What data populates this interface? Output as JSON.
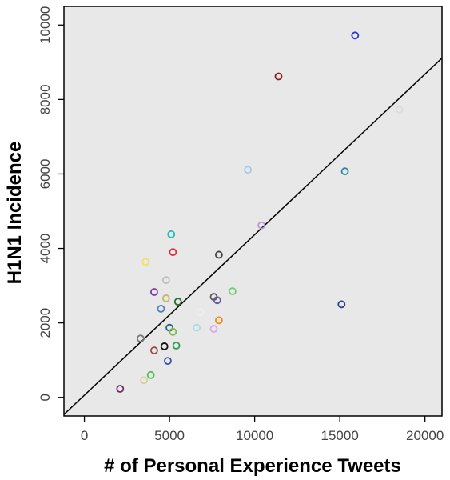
{
  "chart_data": {
    "type": "scatter",
    "xlabel": "# of Personal Experience Tweets",
    "ylabel": "H1N1 Incidence",
    "xlim": [
      -1200,
      21000
    ],
    "ylim": [
      -500,
      10500
    ],
    "xticks": [
      0,
      5000,
      10000,
      15000,
      20000
    ],
    "yticks": [
      0,
      2000,
      4000,
      6000,
      8000,
      10000
    ],
    "x_tick_labels": [
      "0",
      "5000",
      "10000",
      "15000",
      "20000"
    ],
    "y_tick_labels": [
      "0",
      "2000",
      "4000",
      "6000",
      "8000",
      "10000"
    ],
    "grid": false,
    "legend": "none",
    "background_color": "#e8e8e8",
    "marker": "open-circle",
    "trend_line": {
      "x": [
        -1200,
        21000
      ],
      "y": [
        -459,
        9112
      ],
      "color": "#000000"
    },
    "points": [
      {
        "x": 15900,
        "y": 9720,
        "color": "#2d34d4"
      },
      {
        "x": 11400,
        "y": 8620,
        "color": "#8b1a1a"
      },
      {
        "x": 18500,
        "y": 7730,
        "color": "#dcdcdc"
      },
      {
        "x": 9600,
        "y": 6110,
        "color": "#a9c9ea"
      },
      {
        "x": 15300,
        "y": 6070,
        "color": "#2b8aa6"
      },
      {
        "x": 10400,
        "y": 4620,
        "color": "#b79ad3"
      },
      {
        "x": 5100,
        "y": 4380,
        "color": "#27b8b8"
      },
      {
        "x": 5200,
        "y": 3900,
        "color": "#e02a3a"
      },
      {
        "x": 7900,
        "y": 3830,
        "color": "#444444"
      },
      {
        "x": 3600,
        "y": 3640,
        "color": "#eee35a"
      },
      {
        "x": 4800,
        "y": 3150,
        "color": "#bdbdbd"
      },
      {
        "x": 8700,
        "y": 2850,
        "color": "#6fcf6f"
      },
      {
        "x": 4100,
        "y": 2830,
        "color": "#7a3a96"
      },
      {
        "x": 7600,
        "y": 2700,
        "color": "#555555"
      },
      {
        "x": 4800,
        "y": 2660,
        "color": "#c8b560"
      },
      {
        "x": 7800,
        "y": 2610,
        "color": "#6a5a9a"
      },
      {
        "x": 5500,
        "y": 2570,
        "color": "#1e6b2e"
      },
      {
        "x": 15100,
        "y": 2500,
        "color": "#2a3f8a"
      },
      {
        "x": 4500,
        "y": 2380,
        "color": "#4f7fbf"
      },
      {
        "x": 6800,
        "y": 2290,
        "color": "#eeeeee"
      },
      {
        "x": 7900,
        "y": 2070,
        "color": "#f08a1a"
      },
      {
        "x": 5000,
        "y": 1870,
        "color": "#2b5f7f"
      },
      {
        "x": 7600,
        "y": 1840,
        "color": "#d8a8e8"
      },
      {
        "x": 6600,
        "y": 1870,
        "color": "#a8dede"
      },
      {
        "x": 5200,
        "y": 1760,
        "color": "#7ab84a"
      },
      {
        "x": 3300,
        "y": 1580,
        "color": "#777777"
      },
      {
        "x": 4700,
        "y": 1370,
        "color": "#111111"
      },
      {
        "x": 5400,
        "y": 1390,
        "color": "#2e9b4e"
      },
      {
        "x": 4100,
        "y": 1260,
        "color": "#9a4a4a"
      },
      {
        "x": 4900,
        "y": 980,
        "color": "#3a4fa8"
      },
      {
        "x": 3900,
        "y": 600,
        "color": "#4fc04f"
      },
      {
        "x": 3500,
        "y": 460,
        "color": "#d8cfa0"
      },
      {
        "x": 2100,
        "y": 230,
        "color": "#6a2a6a"
      }
    ]
  }
}
